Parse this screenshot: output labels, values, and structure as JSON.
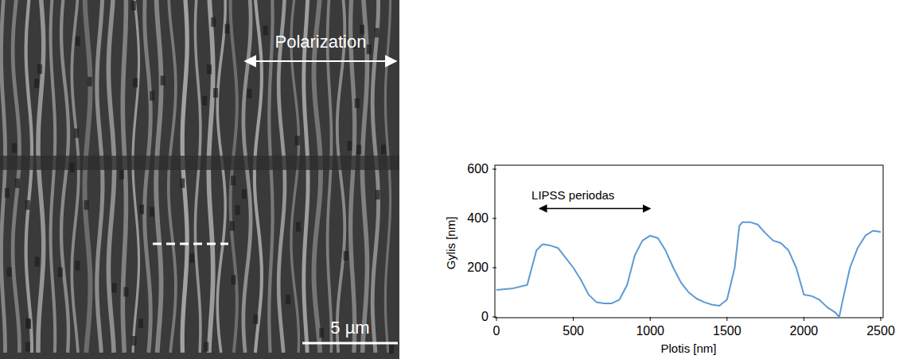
{
  "chart_data": {
    "type": "line",
    "x_label": "Plotis  [nm]",
    "y_label": "Gylis  [nm]",
    "x": [
      0,
      100,
      200,
      230,
      260,
      300,
      350,
      400,
      450,
      500,
      550,
      600,
      650,
      700,
      750,
      800,
      850,
      900,
      950,
      1000,
      1050,
      1100,
      1150,
      1200,
      1250,
      1300,
      1350,
      1400,
      1450,
      1500,
      1550,
      1580,
      1600,
      1650,
      1700,
      1750,
      1800,
      1850,
      1900,
      1950,
      2000,
      2050,
      2100,
      2150,
      2200,
      2230,
      2250,
      2300,
      2350,
      2400,
      2450,
      2500
    ],
    "series": [
      {
        "name": "LIPSS",
        "color": "#5b9bd5",
        "values": [
          110,
          115,
          130,
          200,
          270,
          295,
          290,
          280,
          240,
          200,
          150,
          90,
          60,
          55,
          55,
          70,
          130,
          250,
          310,
          330,
          320,
          270,
          200,
          140,
          100,
          75,
          60,
          50,
          45,
          70,
          200,
          370,
          385,
          385,
          375,
          340,
          310,
          300,
          270,
          200,
          90,
          85,
          70,
          40,
          20,
          0,
          60,
          200,
          280,
          330,
          350,
          345
        ]
      }
    ],
    "xlim": [
      0,
      2500
    ],
    "xticks": [
      0,
      500,
      1000,
      1500,
      2000,
      2500
    ],
    "ylim": [
      0,
      600
    ],
    "yticks": [
      0,
      200,
      400,
      600
    ],
    "grid": false,
    "annotation": {
      "text": "LIPSS periodas",
      "x": [
        280,
        1000
      ],
      "y": 440
    }
  },
  "image": {
    "polarization_label": "Polarization",
    "scale_bar_label": "5 µm"
  }
}
